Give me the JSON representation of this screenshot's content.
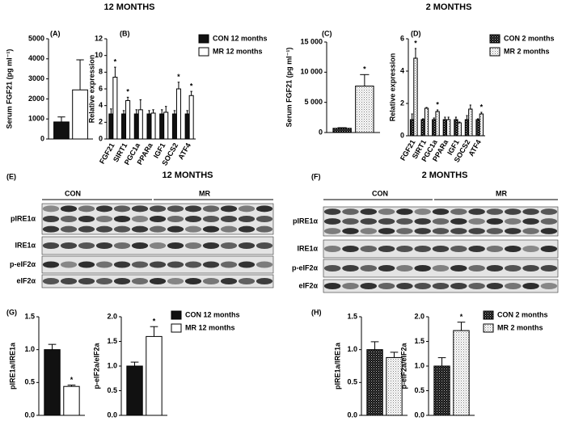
{
  "headings": [
    "12 MONTHS",
    "2 MONTHS"
  ],
  "blots": [
    {
      "label": "(E)",
      "title": "12 MONTHS",
      "groups": [
        "CON",
        "MR"
      ],
      "rows": [
        "pIRE1α",
        "IRE1α",
        "p-eIF2α",
        "eIF2α"
      ]
    },
    {
      "label": "(F)",
      "title": "2 MONTHS",
      "groups": [
        "CON",
        "MR"
      ],
      "rows": [
        "pIRE1α",
        "IRE1α",
        "p-eIF2α",
        "eIF2α"
      ]
    }
  ],
  "chart_data": [
    {
      "type": "bar",
      "panel": "(A)",
      "ylabel": "Serum FGF21 (pg ml⁻¹)",
      "categories": [
        null
      ],
      "series": [
        {
          "color": "#111111",
          "values": [
            850
          ],
          "errors": [
            250
          ]
        },
        {
          "color": "#ffffff",
          "values": [
            2450
          ],
          "errors": [
            1500
          ]
        }
      ],
      "ylim": [
        0,
        5000
      ],
      "yticks": [
        0,
        1000,
        2000,
        3000,
        4000,
        5000
      ]
    },
    {
      "type": "bar",
      "panel": "(B)",
      "ylabel": "Relative expression",
      "categories": [
        "FGF21",
        "SIRT1",
        "PGC1a",
        "PPARa",
        "IGF1",
        "SOCS2",
        "ATF4"
      ],
      "series": [
        {
          "name": "CON 12 months",
          "color": "#111111",
          "values": [
            3.0,
            3.0,
            3.0,
            3.0,
            3.0,
            3.0,
            3.0
          ],
          "errors": [
            0.6,
            0.4,
            0.5,
            0.4,
            0.5,
            0.4,
            0.4
          ]
        },
        {
          "name": "MR 12 months",
          "color": "#ffffff",
          "values": [
            7.4,
            4.6,
            3.5,
            3.1,
            3.2,
            6.0,
            5.2
          ],
          "errors": [
            1.2,
            0.4,
            1.2,
            0.4,
            0.7,
            0.8,
            0.5
          ],
          "stars": [
            "*",
            "*",
            null,
            null,
            null,
            "*",
            "*"
          ]
        }
      ],
      "ylim": [
        0,
        12
      ],
      "yticks": [
        0,
        2,
        4,
        6,
        8,
        10,
        12
      ]
    },
    {
      "type": "bar",
      "panel": "(C)",
      "ylabel": "Serum FGF21 (pg ml⁻¹)",
      "categories": [
        null
      ],
      "series": [
        {
          "pattern": "dark-dots",
          "values": [
            700
          ],
          "errors": [
            100
          ]
        },
        {
          "pattern": "light-dots",
          "values": [
            7700
          ],
          "errors": [
            1900
          ],
          "stars": [
            "*"
          ]
        }
      ],
      "ylim": [
        0,
        15000
      ],
      "yticks": [
        0,
        {
          "value": 5000,
          "label": "5 000"
        },
        {
          "value": 10000,
          "label": "10 000"
        },
        {
          "value": 15000,
          "label": "15 000"
        }
      ]
    },
    {
      "type": "bar",
      "panel": "(D)",
      "ylabel": "Relative expression",
      "categories": [
        "FGF21",
        "SIRT1",
        "PGC1a",
        "PPARa",
        "IGF1",
        "SOCS2",
        "ATF4"
      ],
      "series": [
        {
          "name": "CON 2 months",
          "pattern": "dark-dots",
          "values": [
            1,
            1,
            1,
            1,
            1,
            1,
            1
          ],
          "errors": [
            0.35,
            0.05,
            0.1,
            0.15,
            0.15,
            0.25,
            0.05
          ]
        },
        {
          "name": "MR 2 months",
          "pattern": "light-dots",
          "values": [
            4.8,
            1.7,
            1.5,
            1.0,
            0.8,
            1.65,
            1.35
          ],
          "errors": [
            0.6,
            0.05,
            0.1,
            0.15,
            0.05,
            0.25,
            0.1
          ],
          "stars": [
            "*",
            null,
            "*",
            null,
            null,
            null,
            "*"
          ]
        }
      ],
      "ylim": [
        0,
        6
      ],
      "yticks": [
        0,
        2,
        4,
        6
      ]
    },
    {
      "type": "bar",
      "panel": "(G)",
      "ylabel": "pIRE1a/IRE1a",
      "categories": [
        null
      ],
      "series": [
        {
          "color": "#111111",
          "values": [
            1.0
          ],
          "errors": [
            0.08
          ]
        },
        {
          "color": "#ffffff",
          "values": [
            0.44
          ],
          "errors": [
            0.02
          ],
          "stars": [
            "*"
          ]
        }
      ],
      "ylim": [
        0,
        1.5
      ],
      "yticks": [
        {
          "value": 0,
          "label": "0.0"
        },
        0.5,
        {
          "value": 1,
          "label": "1.0"
        },
        1.5
      ]
    },
    {
      "type": "bar",
      "ylabel": "p-eIF2a/eIF2a",
      "categories": [
        null
      ],
      "series": [
        {
          "name": "CON 12 months",
          "color": "#111111",
          "values": [
            1.0
          ],
          "errors": [
            0.08
          ]
        },
        {
          "name": "MR 12 months",
          "color": "#ffffff",
          "values": [
            1.6
          ],
          "errors": [
            0.2
          ],
          "stars": [
            "*"
          ]
        }
      ],
      "ylim": [
        0,
        2
      ],
      "yticks": [
        {
          "value": 0,
          "label": "0.0"
        },
        0.5,
        {
          "value": 1,
          "label": "1.0"
        },
        1.5,
        {
          "value": 2,
          "label": "2.0"
        }
      ]
    },
    {
      "type": "bar",
      "panel": "(H)",
      "ylabel": "pIRE1a/IRE1a",
      "categories": [
        null
      ],
      "series": [
        {
          "pattern": "dark-dots",
          "values": [
            1.0
          ],
          "errors": [
            0.12
          ]
        },
        {
          "pattern": "light-dots",
          "values": [
            0.88
          ],
          "errors": [
            0.08
          ]
        }
      ],
      "ylim": [
        0,
        1.5
      ],
      "yticks": [
        {
          "value": 0,
          "label": "0.0"
        },
        0.5,
        {
          "value": 1,
          "label": "1.0"
        },
        1.5
      ]
    },
    {
      "type": "bar",
      "ylabel": "p-eIF2a/eIF2a",
      "categories": [
        null
      ],
      "series": [
        {
          "name": "CON 2 months",
          "pattern": "dark-dots",
          "values": [
            1.0
          ],
          "errors": [
            0.17
          ]
        },
        {
          "name": "MR 2 months",
          "pattern": "light-dots",
          "values": [
            1.72
          ],
          "errors": [
            0.17
          ],
          "stars": [
            "*"
          ]
        }
      ],
      "ylim": [
        0,
        2
      ],
      "yticks": [
        {
          "value": 0,
          "label": "0.0"
        },
        0.5,
        {
          "value": 1,
          "label": "1.0"
        },
        1.5,
        {
          "value": 2,
          "label": "2.0"
        }
      ]
    }
  ]
}
